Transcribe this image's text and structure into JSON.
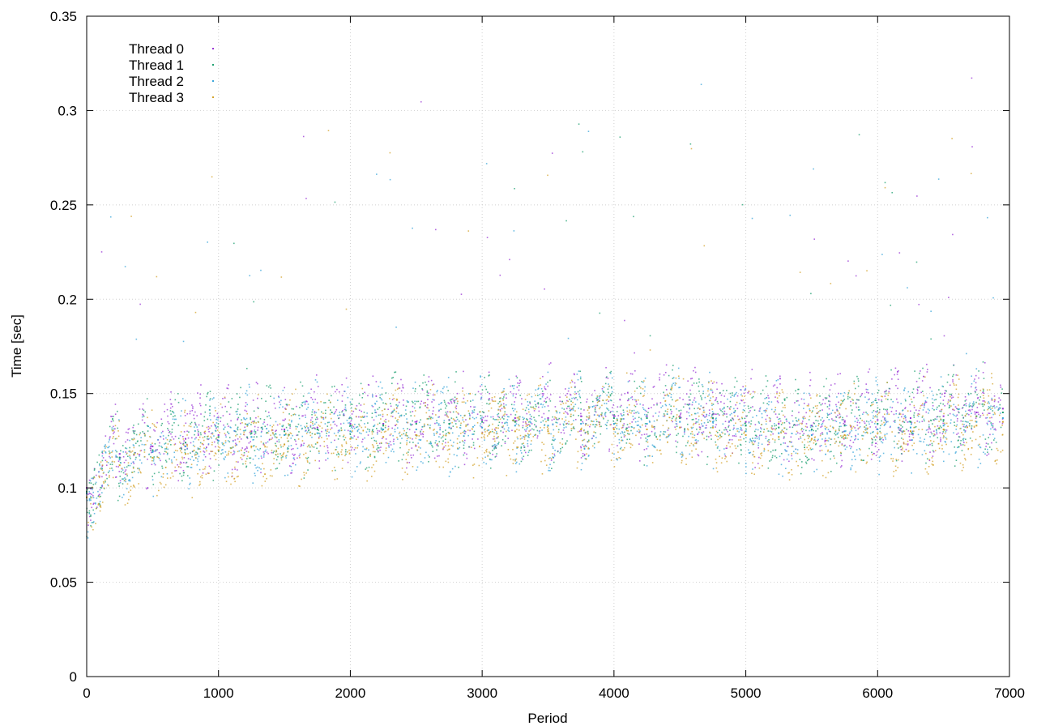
{
  "chart_data": {
    "type": "scatter",
    "title": "",
    "xlabel": "Period",
    "ylabel": "Time [sec]",
    "xlim": [
      0,
      7000
    ],
    "ylim": [
      0,
      0.35
    ],
    "x_ticks": [
      0,
      1000,
      2000,
      3000,
      4000,
      5000,
      6000,
      7000
    ],
    "y_ticks": [
      0,
      0.05,
      0.1,
      0.15,
      0.2,
      0.25,
      0.3,
      0.35
    ],
    "x_tick_labels": [
      "0",
      "1000",
      "2000",
      "3000",
      "4000",
      "5000",
      "6000",
      "7000"
    ],
    "y_tick_labels": [
      "0",
      "0.05",
      "0.1",
      "0.15",
      "0.2",
      "0.25",
      "0.3",
      "0.35"
    ],
    "grid": true,
    "legend_position": "top-left",
    "series": [
      {
        "name": "Thread 0",
        "color": "#9a36d6",
        "x": [
          0,
          250,
          500,
          750,
          1000,
          1250,
          1500,
          1750,
          2000,
          2250,
          2500,
          2750,
          3000,
          3250,
          3500,
          3750,
          4000,
          4250,
          4500,
          4750,
          5000,
          5250,
          5500,
          5750,
          6000,
          6250,
          6500,
          6750,
          6950
        ],
        "y": [
          0.1,
          0.118,
          0.122,
          0.126,
          0.128,
          0.13,
          0.131,
          0.132,
          0.134,
          0.134,
          0.135,
          0.136,
          0.136,
          0.137,
          0.137,
          0.138,
          0.138,
          0.138,
          0.138,
          0.139,
          0.135,
          0.134,
          0.133,
          0.135,
          0.136,
          0.137,
          0.138,
          0.14,
          0.142
        ]
      },
      {
        "name": "Thread 1",
        "color": "#1ea070",
        "x": [
          0,
          250,
          500,
          750,
          1000,
          1250,
          1500,
          1750,
          2000,
          2250,
          2500,
          2750,
          3000,
          3250,
          3500,
          3750,
          4000,
          4250,
          4500,
          4750,
          5000,
          5250,
          5500,
          5750,
          6000,
          6250,
          6500,
          6750,
          6950
        ],
        "y": [
          0.098,
          0.116,
          0.12,
          0.124,
          0.127,
          0.129,
          0.13,
          0.131,
          0.133,
          0.133,
          0.134,
          0.134,
          0.135,
          0.135,
          0.136,
          0.136,
          0.137,
          0.137,
          0.137,
          0.137,
          0.133,
          0.132,
          0.131,
          0.133,
          0.134,
          0.135,
          0.136,
          0.138,
          0.14
        ]
      },
      {
        "name": "Thread 2",
        "color": "#3aa6da",
        "x": [
          0,
          250,
          500,
          750,
          1000,
          1250,
          1500,
          1750,
          2000,
          2250,
          2500,
          2750,
          3000,
          3250,
          3500,
          3750,
          4000,
          4250,
          4500,
          4750,
          5000,
          5250,
          5500,
          5750,
          6000,
          6250,
          6500,
          6750,
          6950
        ],
        "y": [
          0.097,
          0.115,
          0.119,
          0.122,
          0.125,
          0.127,
          0.128,
          0.129,
          0.13,
          0.131,
          0.131,
          0.132,
          0.132,
          0.133,
          0.133,
          0.134,
          0.134,
          0.134,
          0.135,
          0.135,
          0.13,
          0.129,
          0.128,
          0.13,
          0.131,
          0.132,
          0.133,
          0.135,
          0.137
        ]
      },
      {
        "name": "Thread 3",
        "color": "#d4a32c",
        "x": [
          0,
          250,
          500,
          750,
          1000,
          1250,
          1500,
          1750,
          2000,
          2250,
          2500,
          2750,
          3000,
          3250,
          3500,
          3750,
          4000,
          4250,
          4500,
          4750,
          5000,
          5250,
          5500,
          5750,
          6000,
          6250,
          6500,
          6750,
          6950
        ],
        "y": [
          0.095,
          0.112,
          0.116,
          0.118,
          0.12,
          0.122,
          0.123,
          0.124,
          0.126,
          0.127,
          0.128,
          0.129,
          0.129,
          0.13,
          0.13,
          0.131,
          0.131,
          0.131,
          0.132,
          0.132,
          0.128,
          0.127,
          0.126,
          0.128,
          0.129,
          0.13,
          0.131,
          0.133,
          0.135
        ]
      }
    ]
  }
}
